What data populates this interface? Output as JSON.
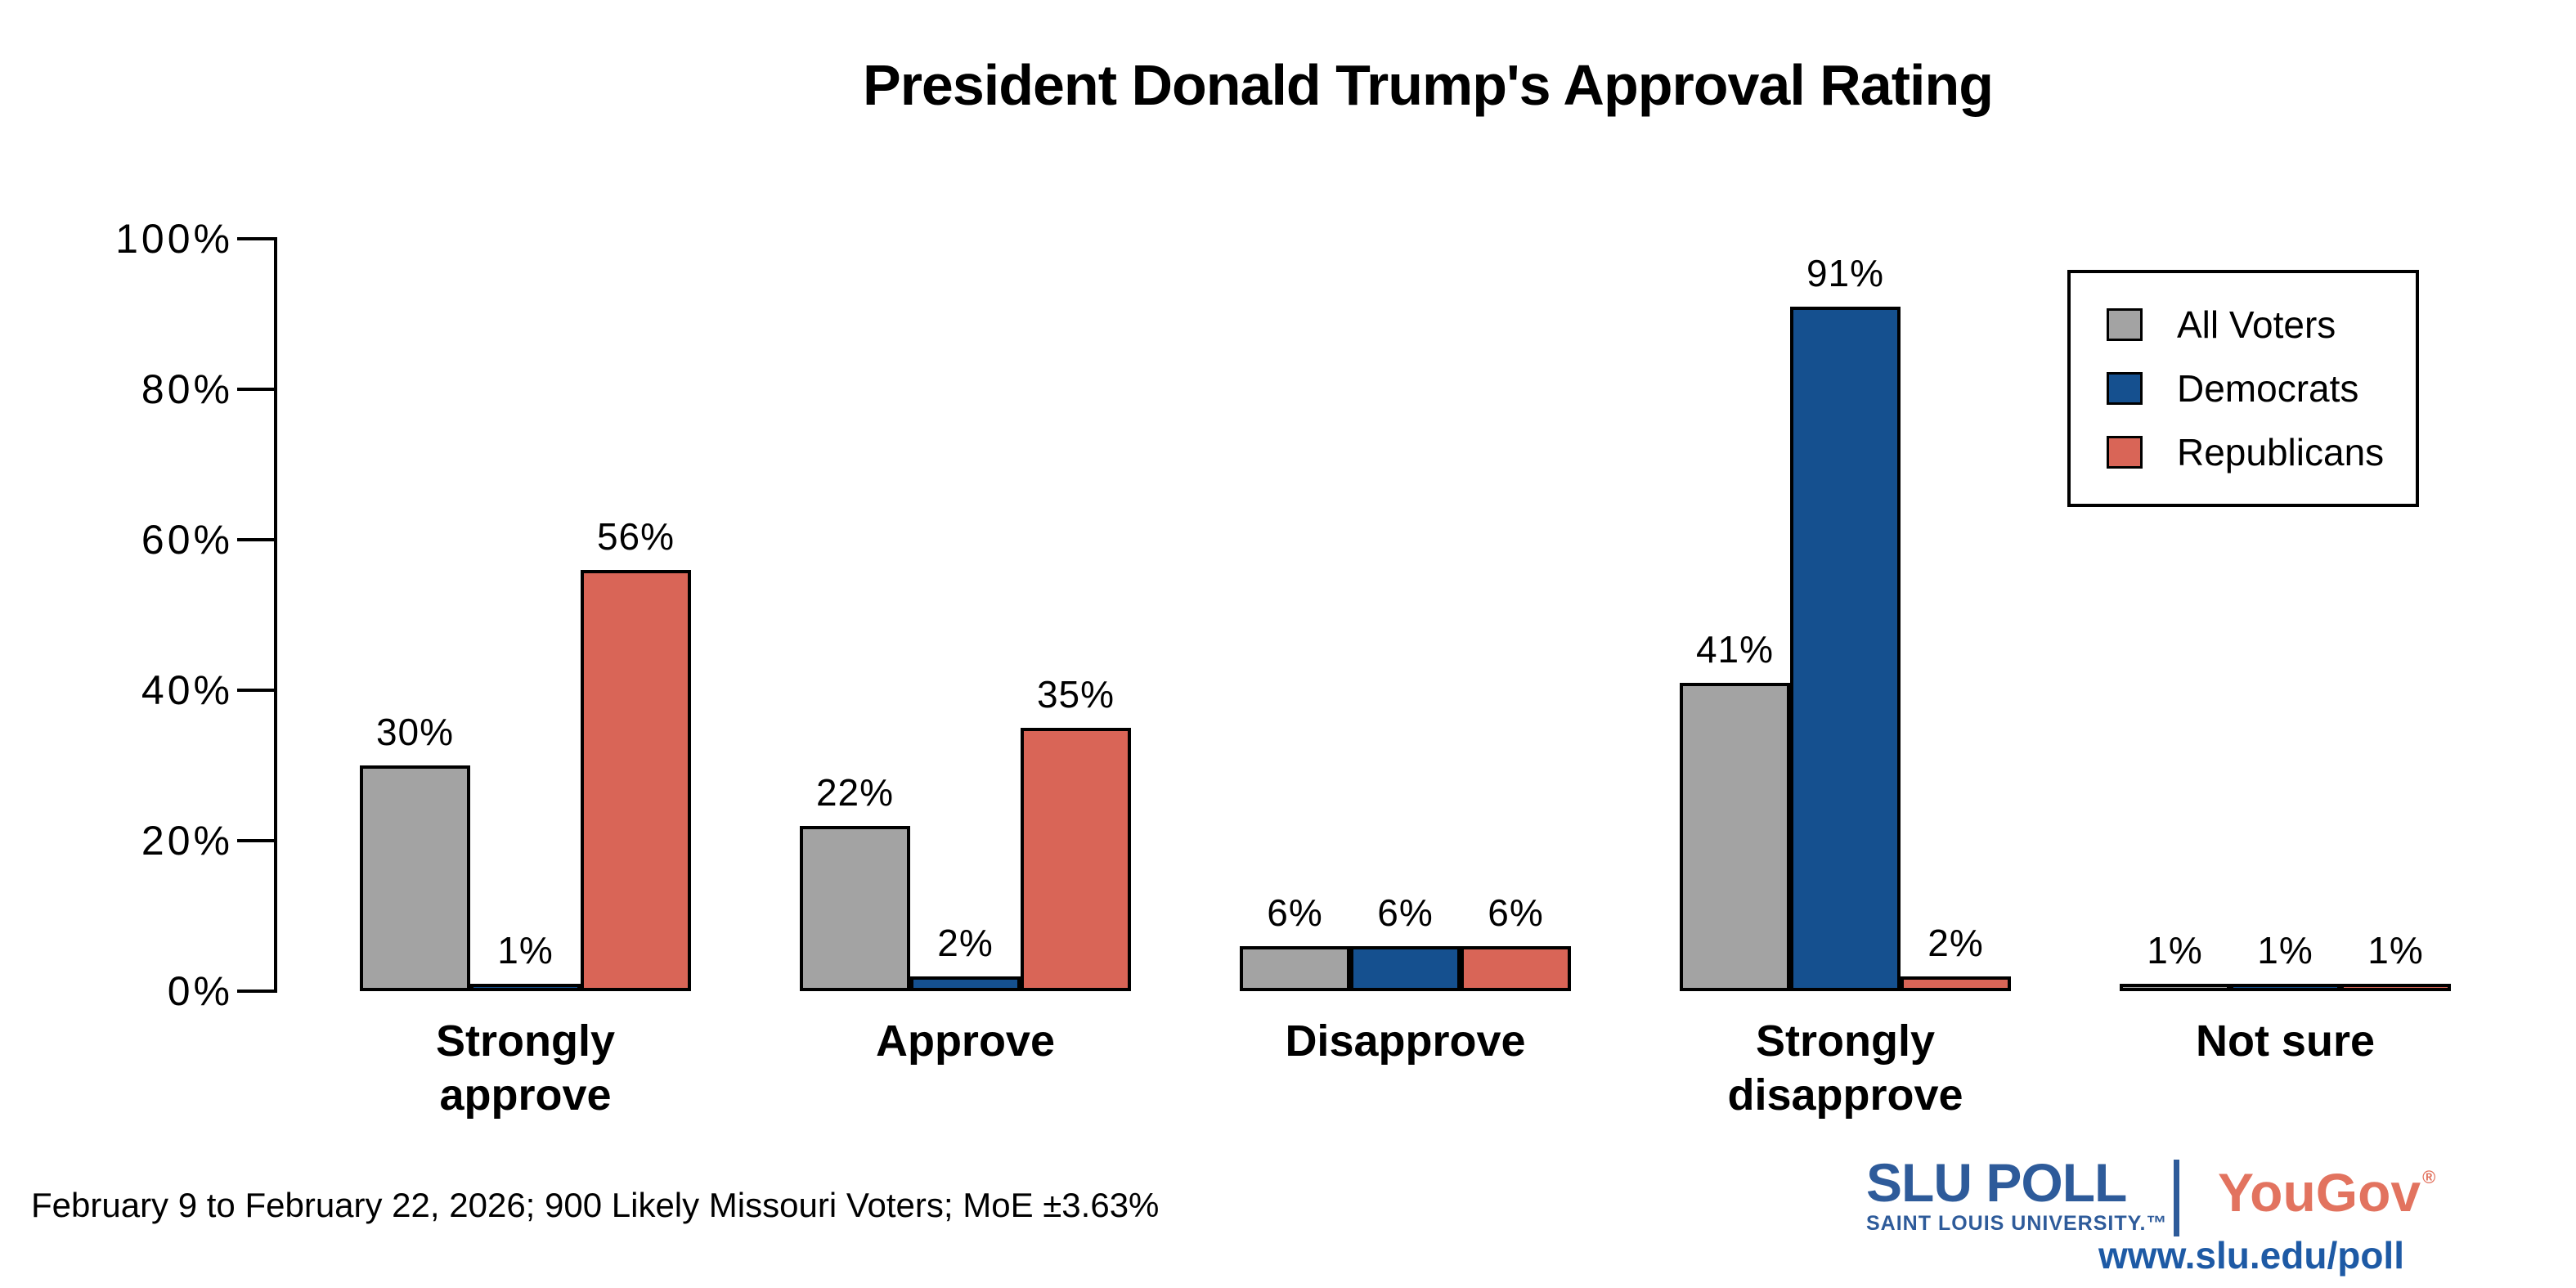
{
  "title": "President Donald Trump's Approval Rating",
  "footer": {
    "text": "February 9 to February 22, 2026; 900 Likely Missouri Voters; MoE ±3.63%"
  },
  "branding": {
    "slu_poll": "SLU POLL",
    "slu_sub": "SAINT LOUIS UNIVERSITY.™",
    "yougov": "YouGov",
    "yougov_reg": "®",
    "url": "www.slu.edu/poll",
    "slu_blue": "#2e5b9a",
    "yougov_red": "#e2735f",
    "url_blue": "#1e5aa5"
  },
  "chart_data": {
    "type": "bar",
    "title": "President Donald Trump's Approval Rating",
    "categories": [
      "Strongly approve",
      "Approve",
      "Disapprove",
      "Strongly disapprove",
      "Not sure"
    ],
    "series": [
      {
        "name": "All Voters",
        "color": "#a3a3a3",
        "values": [
          30,
          22,
          6,
          41,
          1
        ]
      },
      {
        "name": "Democrats",
        "color": "#15508f",
        "values": [
          1,
          2,
          6,
          91,
          1
        ]
      },
      {
        "name": "Republicans",
        "color": "#d96557",
        "values": [
          56,
          35,
          6,
          2,
          1
        ]
      }
    ],
    "value_labels": [
      [
        "30%",
        "22%",
        "6%",
        "41%",
        "1%"
      ],
      [
        "1%",
        "2%",
        "6%",
        "91%",
        "1%"
      ],
      [
        "56%",
        "35%",
        "6%",
        "2%",
        "1%"
      ]
    ],
    "ylabel": "",
    "xlabel": "",
    "ylim": [
      0,
      100
    ],
    "yticks": [
      0,
      20,
      40,
      60,
      80,
      100
    ],
    "ytick_suffix": "%",
    "bar_outline": "#000000",
    "grid": false,
    "legend_position": "top-right",
    "legend_border": "#000000"
  }
}
